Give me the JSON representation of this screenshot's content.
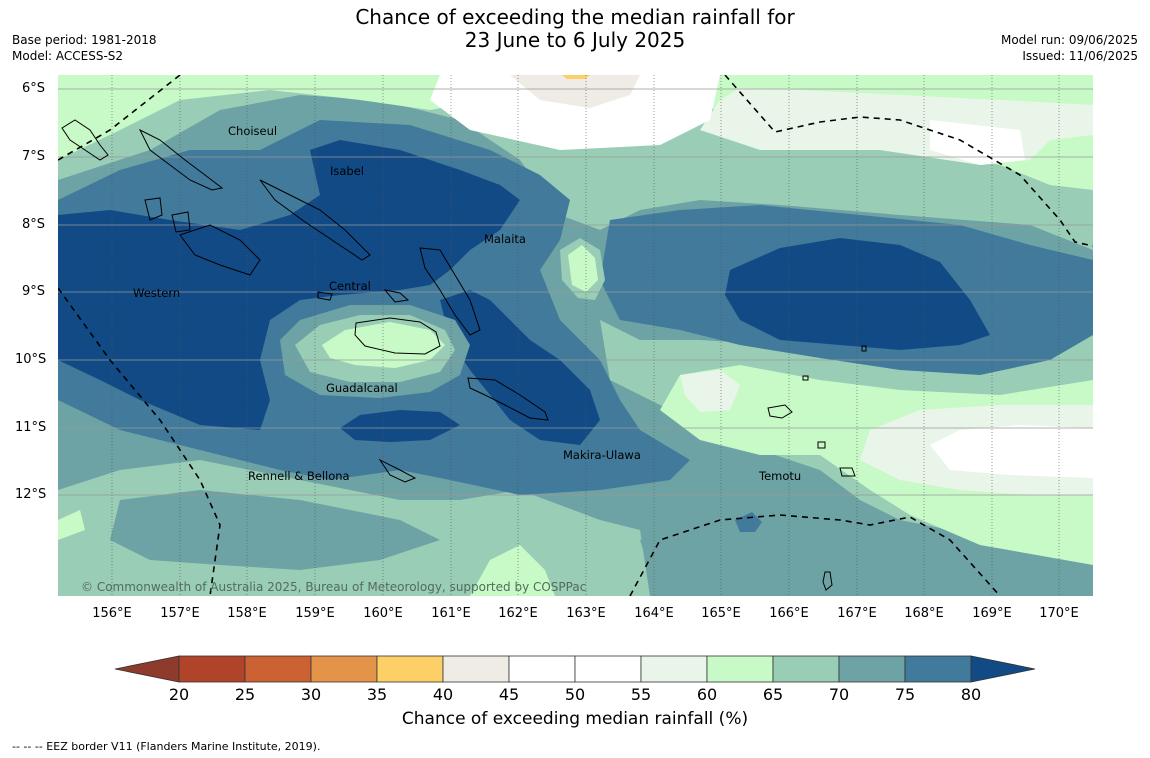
{
  "title": {
    "line1": "Chance of exceeding the median rainfall for",
    "line2": "23 June to 6 July 2025"
  },
  "meta_left": {
    "base_period": "Base period: 1981-2018",
    "model": "Model: ACCESS-S2"
  },
  "meta_right": {
    "model_run": "Model run: 09/06/2025",
    "issued": "Issued: 11/06/2025"
  },
  "map": {
    "lat_labels": [
      "6°S",
      "7°S",
      "8°S",
      "9°S",
      "10°S",
      "11°S",
      "12°S"
    ],
    "lon_labels": [
      "156°E",
      "157°E",
      "158°E",
      "159°E",
      "160°E",
      "161°E",
      "162°E",
      "163°E",
      "164°E",
      "165°E",
      "166°E",
      "167°E",
      "168°E",
      "169°E",
      "170°E"
    ],
    "places": [
      {
        "name": "Choiseul"
      },
      {
        "name": "Isabel"
      },
      {
        "name": "Malaita"
      },
      {
        "name": "Western"
      },
      {
        "name": "Central"
      },
      {
        "name": "Guadalcanal"
      },
      {
        "name": "Makira-Ulawa"
      },
      {
        "name": "Rennell & Bellona"
      },
      {
        "name": "Temotu"
      }
    ],
    "copyright": "© Commonwealth of Australia 2025, Bureau of Meteorology, supported by COSPPac"
  },
  "colorbar": {
    "ticks": [
      "20",
      "25",
      "30",
      "35",
      "40",
      "45",
      "50",
      "55",
      "60",
      "65",
      "70",
      "75",
      "80"
    ],
    "colors": [
      "#b0442a",
      "#cc6233",
      "#e49448",
      "#fdd067",
      "#efece6",
      "#ffffff",
      "#ffffff",
      "#e9f5e9",
      "#c8fac8",
      "#99cdb6",
      "#6da3a5",
      "#417a9a"
    ],
    "under_color": "#8e3a2c",
    "over_color": "#124a86",
    "label": "Chance of exceeding median rainfall (%)"
  },
  "legend_note": "--  --  -- EEZ border V11 (Flanders Marine Institute, 2019)."
}
